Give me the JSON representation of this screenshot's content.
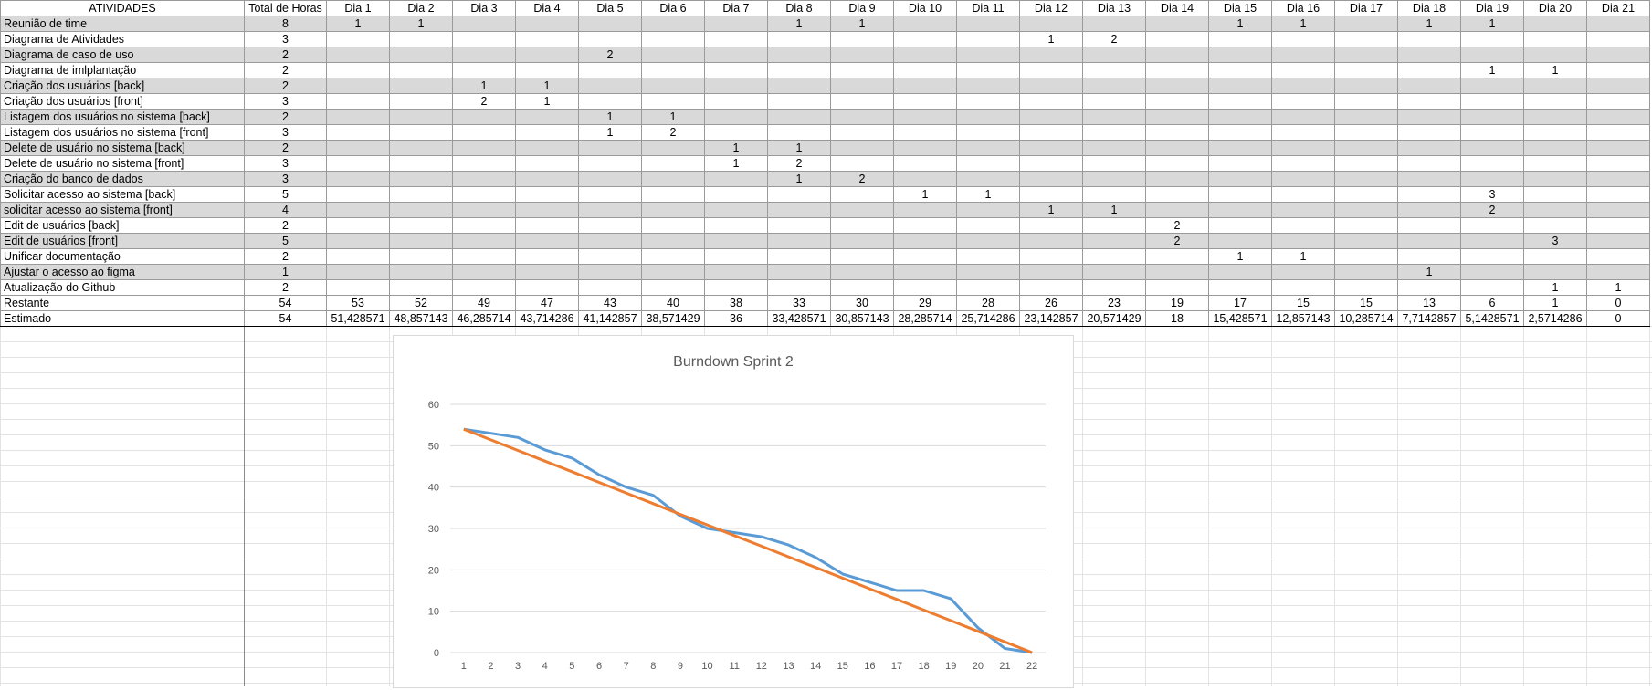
{
  "sheet": {
    "header": [
      "ATIVIDADES",
      "Total de Horas",
      "Dia 1",
      "Dia 2",
      "Dia 3",
      "Dia 4",
      "Dia 5",
      "Dia 6",
      "Dia 7",
      "Dia 8",
      "Dia 9",
      "Dia 10",
      "Dia 11",
      "Dia 12",
      "Dia 13",
      "Dia 14",
      "Dia 15",
      "Dia 16",
      "Dia 17",
      "Dia 18",
      "Dia 19",
      "Dia 20",
      "Dia 21"
    ],
    "rows": [
      {
        "name": "Reunião de time",
        "total": "8",
        "days": [
          "1",
          "1",
          "",
          "",
          "",
          "",
          "",
          "1",
          "1",
          "",
          "",
          "",
          "",
          "",
          "1",
          "1",
          "",
          "1",
          "1",
          "",
          ""
        ]
      },
      {
        "name": "Diagrama de Atividades",
        "total": "3",
        "days": [
          "",
          "",
          "",
          "",
          "",
          "",
          "",
          "",
          "",
          "",
          "",
          "1",
          "2",
          "",
          "",
          "",
          "",
          "",
          "",
          "",
          ""
        ]
      },
      {
        "name": "Diagrama de caso de uso",
        "total": "2",
        "days": [
          "",
          "",
          "",
          "",
          "2",
          "",
          "",
          "",
          "",
          "",
          "",
          "",
          "",
          "",
          "",
          "",
          "",
          "",
          "",
          "",
          ""
        ]
      },
      {
        "name": "Diagrama de imlplantação",
        "total": "2",
        "days": [
          "",
          "",
          "",
          "",
          "",
          "",
          "",
          "",
          "",
          "",
          "",
          "",
          "",
          "",
          "",
          "",
          "",
          "",
          "1",
          "1",
          ""
        ]
      },
      {
        "name": "Criação dos usuários [back]",
        "total": "2",
        "days": [
          "",
          "",
          "1",
          "1",
          "",
          "",
          "",
          "",
          "",
          "",
          "",
          "",
          "",
          "",
          "",
          "",
          "",
          "",
          "",
          "",
          ""
        ]
      },
      {
        "name": "Criação dos usuários [front]",
        "total": "3",
        "days": [
          "",
          "",
          "2",
          "1",
          "",
          "",
          "",
          "",
          "",
          "",
          "",
          "",
          "",
          "",
          "",
          "",
          "",
          "",
          "",
          "",
          ""
        ]
      },
      {
        "name": "Listagem dos usuários no sistema [back]",
        "total": "2",
        "days": [
          "",
          "",
          "",
          "",
          "1",
          "1",
          "",
          "",
          "",
          "",
          "",
          "",
          "",
          "",
          "",
          "",
          "",
          "",
          "",
          "",
          ""
        ]
      },
      {
        "name": "Listagem dos usuários no sistema [front]",
        "total": "3",
        "days": [
          "",
          "",
          "",
          "",
          "1",
          "2",
          "",
          "",
          "",
          "",
          "",
          "",
          "",
          "",
          "",
          "",
          "",
          "",
          "",
          "",
          ""
        ]
      },
      {
        "name": "Delete de usuário no sistema [back]",
        "total": "2",
        "days": [
          "",
          "",
          "",
          "",
          "",
          "",
          "1",
          "1",
          "",
          "",
          "",
          "",
          "",
          "",
          "",
          "",
          "",
          "",
          "",
          "",
          ""
        ]
      },
      {
        "name": "Delete de usuário no sistema [front]",
        "total": "3",
        "days": [
          "",
          "",
          "",
          "",
          "",
          "",
          "1",
          "2",
          "",
          "",
          "",
          "",
          "",
          "",
          "",
          "",
          "",
          "",
          "",
          "",
          ""
        ]
      },
      {
        "name": "Criação do banco de dados",
        "total": "3",
        "days": [
          "",
          "",
          "",
          "",
          "",
          "",
          "",
          "1",
          "2",
          "",
          "",
          "",
          "",
          "",
          "",
          "",
          "",
          "",
          "",
          "",
          ""
        ]
      },
      {
        "name": "Solicitar acesso ao sistema [back]",
        "total": "5",
        "days": [
          "",
          "",
          "",
          "",
          "",
          "",
          "",
          "",
          "",
          "1",
          "1",
          "",
          "",
          "",
          "",
          "",
          "",
          "",
          "3",
          "",
          ""
        ]
      },
      {
        "name": "solicitar acesso ao sistema [front]",
        "total": "4",
        "days": [
          "",
          "",
          "",
          "",
          "",
          "",
          "",
          "",
          "",
          "",
          "",
          "1",
          "1",
          "",
          "",
          "",
          "",
          "",
          "2",
          "",
          ""
        ]
      },
      {
        "name": "Edit de usuários [back]",
        "total": "2",
        "days": [
          "",
          "",
          "",
          "",
          "",
          "",
          "",
          "",
          "",
          "",
          "",
          "",
          "",
          "2",
          "",
          "",
          "",
          "",
          "",
          "",
          ""
        ]
      },
      {
        "name": "Edit de usuários [front]",
        "total": "5",
        "days": [
          "",
          "",
          "",
          "",
          "",
          "",
          "",
          "",
          "",
          "",
          "",
          "",
          "",
          "2",
          "",
          "",
          "",
          "",
          "",
          "3",
          ""
        ]
      },
      {
        "name": "Unificar documentação",
        "total": "2",
        "days": [
          "",
          "",
          "",
          "",
          "",
          "",
          "",
          "",
          "",
          "",
          "",
          "",
          "",
          "",
          "1",
          "1",
          "",
          "",
          "",
          "",
          ""
        ]
      },
      {
        "name": "Ajustar o acesso ao figma",
        "total": "1",
        "days": [
          "",
          "",
          "",
          "",
          "",
          "",
          "",
          "",
          "",
          "",
          "",
          "",
          "",
          "",
          "",
          "",
          "",
          "1",
          "",
          "",
          ""
        ]
      },
      {
        "name": "Atualização do Github",
        "total": "2",
        "days": [
          "",
          "",
          "",
          "",
          "",
          "",
          "",
          "",
          "",
          "",
          "",
          "",
          "",
          "",
          "",
          "",
          "",
          "",
          "",
          "1",
          "1"
        ]
      }
    ],
    "restante": {
      "name": "Restante",
      "total": "54",
      "days": [
        "53",
        "52",
        "49",
        "47",
        "43",
        "40",
        "38",
        "33",
        "30",
        "29",
        "28",
        "26",
        "23",
        "19",
        "17",
        "15",
        "15",
        "13",
        "6",
        "1",
        "0"
      ]
    },
    "estimado": {
      "name": "Estimado",
      "total": "54",
      "days": [
        "51,428571",
        "48,857143",
        "46,285714",
        "43,714286",
        "41,142857",
        "38,571429",
        "36",
        "33,428571",
        "30,857143",
        "28,285714",
        "25,714286",
        "23,142857",
        "20,571429",
        "18",
        "15,428571",
        "12,857143",
        "10,285714",
        "7,7142857",
        "5,1428571",
        "2,5714286",
        "0"
      ]
    }
  },
  "chart_data": {
    "type": "line",
    "title": "Burndown Sprint 2",
    "x": [
      1,
      2,
      3,
      4,
      5,
      6,
      7,
      8,
      9,
      10,
      11,
      12,
      13,
      14,
      15,
      16,
      17,
      18,
      19,
      20,
      21,
      22
    ],
    "ylim": [
      0,
      60
    ],
    "yticks": [
      0,
      10,
      20,
      30,
      40,
      50,
      60
    ],
    "grid": true,
    "series": [
      {
        "color": "#5b9bd5",
        "values": [
          54,
          53,
          52,
          49,
          47,
          43,
          40,
          38,
          33,
          30,
          29,
          28,
          26,
          23,
          19,
          17,
          15,
          15,
          13,
          6,
          1,
          0
        ]
      },
      {
        "color": "#ed7d31",
        "values": [
          54,
          51.428571,
          48.857143,
          46.285714,
          43.714286,
          41.142857,
          38.571429,
          36,
          33.428571,
          30.857143,
          28.285714,
          25.714286,
          23.142857,
          20.571429,
          18,
          15.428571,
          12.857143,
          10.285714,
          7.7142857,
          5.1428571,
          2.5714286,
          0
        ]
      }
    ]
  }
}
